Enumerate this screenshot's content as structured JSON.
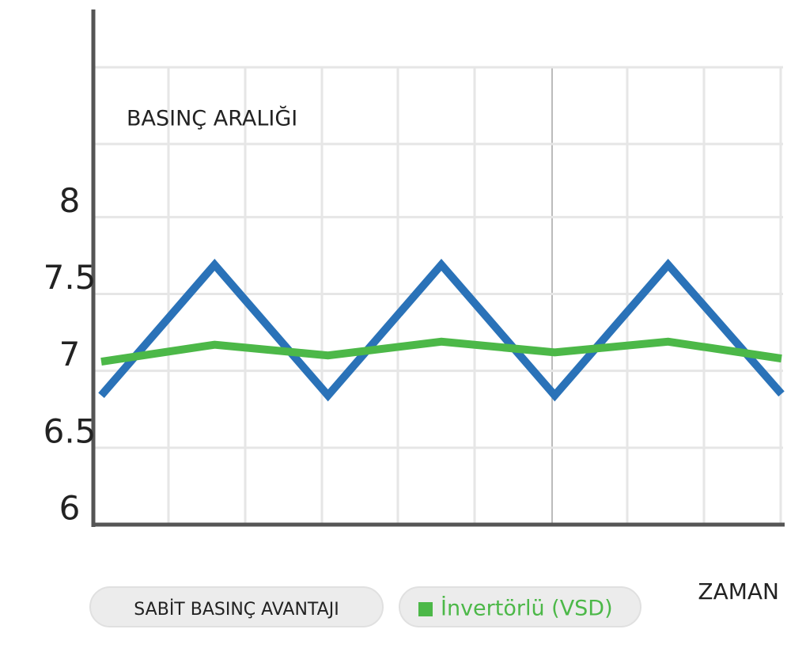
{
  "chart_data": {
    "type": "line",
    "y_label": "BASINÇ ARALIĞI",
    "x_label": "ZAMAN",
    "button_label": "SABİT BASINÇ AVANTAJI",
    "categories": [
      null,
      null,
      null,
      null,
      null,
      null,
      null
    ],
    "series": [
      {
        "color": "#2a72b8",
        "values": [
          6.84,
          7.69,
          6.84,
          7.69,
          6.84,
          7.69,
          6.85
        ]
      },
      {
        "name": "İnvertörlü (VSD)",
        "color": "#4cb848",
        "values": [
          7.06,
          7.17,
          7.1,
          7.19,
          7.12,
          7.19,
          7.08
        ]
      }
    ],
    "ylim": [
      6,
      9.35
    ],
    "yticks": [
      6,
      6.5,
      7,
      7.5,
      8
    ],
    "grid": true
  }
}
